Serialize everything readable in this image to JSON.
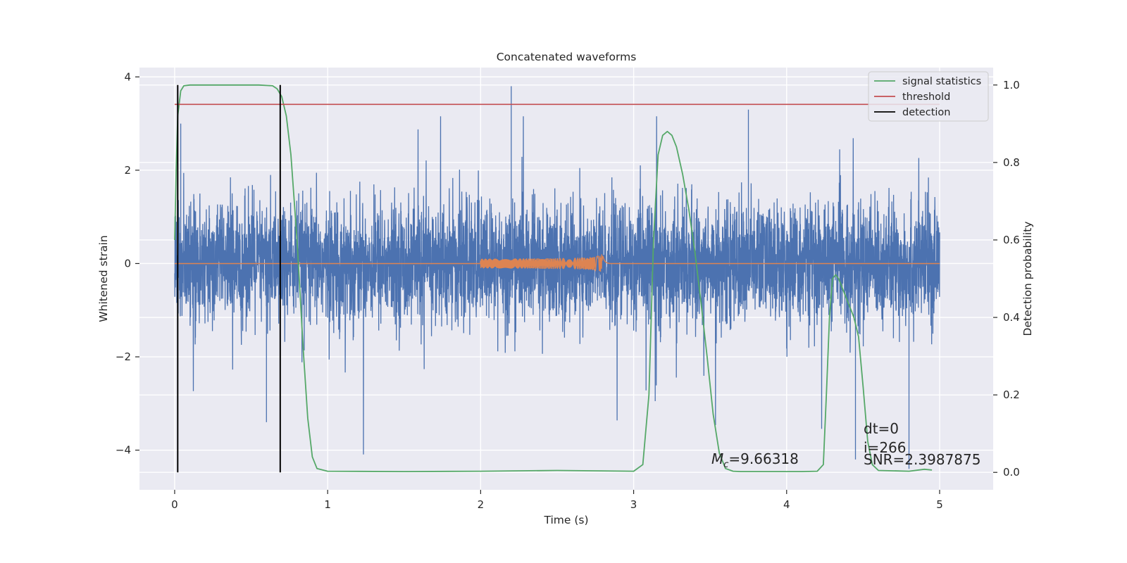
{
  "chart_data": {
    "type": "line",
    "title": "Concatenated waveforms",
    "xlabel": "Time (s)",
    "ylabel_left": "Whitened strain",
    "ylabel_right": "Detection probability",
    "xlim": [
      -0.23,
      5.35
    ],
    "ylim_left": [
      -4.85,
      4.2
    ],
    "ylim_right": [
      -0.045,
      1.045
    ],
    "x_ticks": [
      0,
      1,
      2,
      3,
      4,
      5
    ],
    "x_tick_labels": [
      "0",
      "1",
      "2",
      "3",
      "4",
      "5"
    ],
    "y_left_ticks": [
      -4,
      -2,
      0,
      2,
      4
    ],
    "y_left_tick_labels": [
      "−4",
      "−2",
      "0",
      "2",
      "4"
    ],
    "y_right_ticks": [
      0.0,
      0.2,
      0.4,
      0.6,
      0.8,
      1.0
    ],
    "y_right_tick_labels": [
      "0.0",
      "0.2",
      "0.4",
      "0.6",
      "0.8",
      "1.0"
    ],
    "grid": true,
    "legend_placement": "top-right",
    "legend": [
      {
        "label": "signal statistics",
        "color": "#55a868"
      },
      {
        "label": "threshold",
        "color": "#c44e52"
      },
      {
        "label": "detection",
        "color": "#000000"
      }
    ],
    "series": [
      {
        "name": "noise",
        "axis": "left",
        "color": "#4c72b0",
        "t_range": [
          0,
          5
        ],
        "typical_amplitude": 1.3,
        "max_peak": 3.8,
        "min_trough": -4.4
      },
      {
        "name": "injected chirp",
        "axis": "left",
        "color": "#dd8452",
        "t_start": 2.0,
        "t_merger": 2.8,
        "peak_amplitude": 0.3
      },
      {
        "name": "signal statistics",
        "axis": "right",
        "color": "#55a868",
        "x": [
          0.0,
          0.01,
          0.02,
          0.04,
          0.06,
          0.1,
          0.2,
          0.4,
          0.55,
          0.64,
          0.67,
          0.7,
          0.73,
          0.76,
          0.8,
          0.84,
          0.87,
          0.9,
          0.93,
          1.0,
          1.5,
          2.0,
          2.5,
          3.0,
          3.06,
          3.1,
          3.13,
          3.16,
          3.19,
          3.22,
          3.25,
          3.28,
          3.32,
          3.36,
          3.4,
          3.44,
          3.48,
          3.52,
          3.56,
          3.6,
          3.65,
          3.7,
          3.9,
          4.1,
          4.2,
          4.24,
          4.26,
          4.28,
          4.3,
          4.32,
          4.34,
          4.37,
          4.4,
          4.44,
          4.47,
          4.5,
          4.53,
          4.56,
          4.6,
          4.8,
          4.9,
          4.95
        ],
        "y": [
          0.6,
          0.78,
          0.92,
          0.985,
          0.998,
          1.0,
          1.0,
          1.0,
          1.0,
          0.998,
          0.99,
          0.97,
          0.92,
          0.82,
          0.6,
          0.32,
          0.14,
          0.04,
          0.01,
          0.003,
          0.002,
          0.003,
          0.005,
          0.003,
          0.02,
          0.2,
          0.6,
          0.82,
          0.87,
          0.88,
          0.87,
          0.84,
          0.77,
          0.68,
          0.57,
          0.44,
          0.3,
          0.15,
          0.05,
          0.01,
          0.003,
          0.002,
          0.002,
          0.002,
          0.003,
          0.02,
          0.2,
          0.4,
          0.5,
          0.51,
          0.5,
          0.47,
          0.44,
          0.4,
          0.35,
          0.22,
          0.08,
          0.02,
          0.005,
          0.003,
          0.008,
          0.006
        ]
      },
      {
        "name": "threshold",
        "axis": "right",
        "color": "#c44e52",
        "x": [
          0,
          5
        ],
        "y": [
          0.95,
          0.95
        ]
      },
      {
        "name": "detection",
        "axis": "right",
        "color": "#000000",
        "x_positions": [
          0.02,
          0.69
        ],
        "y_range": [
          0.0,
          1.0
        ]
      }
    ],
    "annotations": {
      "mc_prefix": "M",
      "mc_sub": "c",
      "mc_value": "=9.66318",
      "dt": "dt=0",
      "i": "i=266",
      "snr": "SNR=2.3987875"
    }
  }
}
